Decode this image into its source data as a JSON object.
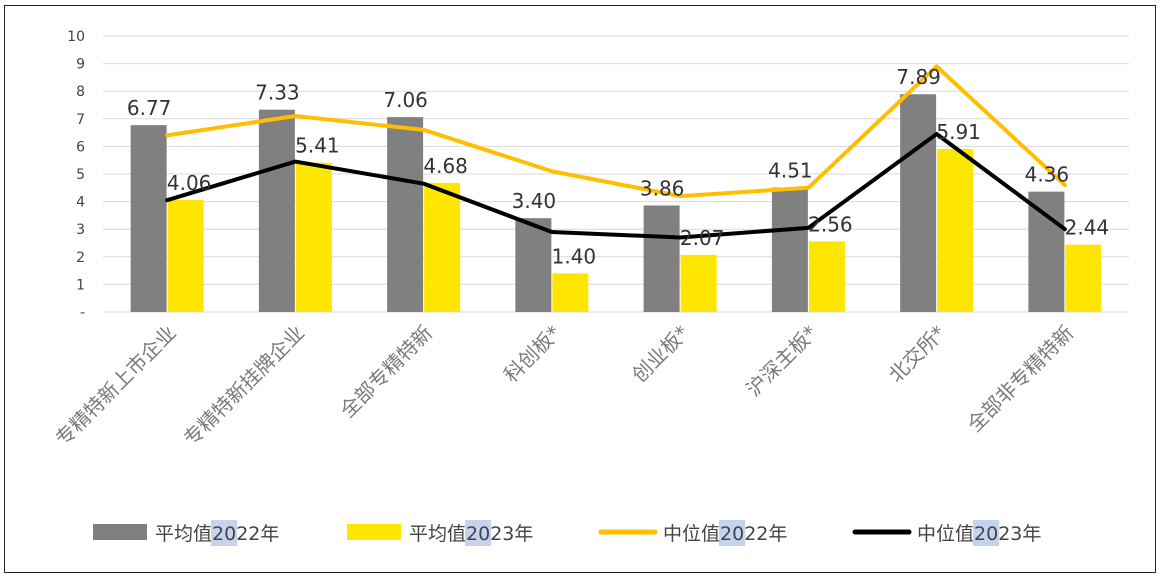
{
  "chart_data": {
    "type": "bar",
    "categories": [
      "专精特新上市企业",
      "专精特新挂牌企业",
      "全部专精特新",
      "科创板*",
      "创业板*",
      "沪深主板*",
      "北交所*",
      "全部非专精特新"
    ],
    "y_tick_labels": [
      "-",
      "1",
      "2",
      "3",
      "4",
      "5",
      "6",
      "7",
      "8",
      "9",
      "10"
    ],
    "ylim": [
      0,
      10
    ],
    "grid": true,
    "legend_position": "bottom",
    "series": [
      {
        "name": "平均值 2022年",
        "kind": "bar",
        "color": "#808080",
        "values": [
          6.77,
          7.33,
          7.06,
          3.4,
          3.86,
          4.51,
          7.89,
          4.36
        ],
        "labels": [
          "6.77",
          "7.33",
          "7.06",
          "3.40",
          "3.86",
          "4.51",
          "7.89",
          "4.36"
        ]
      },
      {
        "name": "平均值 2023年",
        "kind": "bar",
        "color": "#ffe600",
        "values": [
          4.06,
          5.41,
          4.68,
          1.4,
          2.07,
          2.56,
          5.91,
          2.44
        ],
        "labels": [
          "4.06",
          "5.41",
          "4.68",
          "1.40",
          "2.07",
          "2.56",
          "5.91",
          "2.44"
        ]
      },
      {
        "name": "中位值 2022年",
        "kind": "line",
        "color": "#ffbf00",
        "values": [
          6.4,
          7.1,
          6.6,
          5.1,
          4.2,
          4.5,
          8.9,
          4.6
        ]
      },
      {
        "name": "中位值 2023年",
        "kind": "line",
        "color": "#000000",
        "values": [
          4.05,
          5.45,
          4.65,
          2.9,
          2.7,
          3.05,
          6.45,
          3.0
        ]
      }
    ],
    "legend": [
      {
        "prefix": "平均值 ",
        "year": "2022年",
        "series": 0
      },
      {
        "prefix": "平均值 ",
        "year": "2023年",
        "series": 1
      },
      {
        "prefix": "中位值 ",
        "year": "2022年",
        "series": 2
      },
      {
        "prefix": "中位值 ",
        "year": "2023年",
        "series": 3
      }
    ]
  }
}
